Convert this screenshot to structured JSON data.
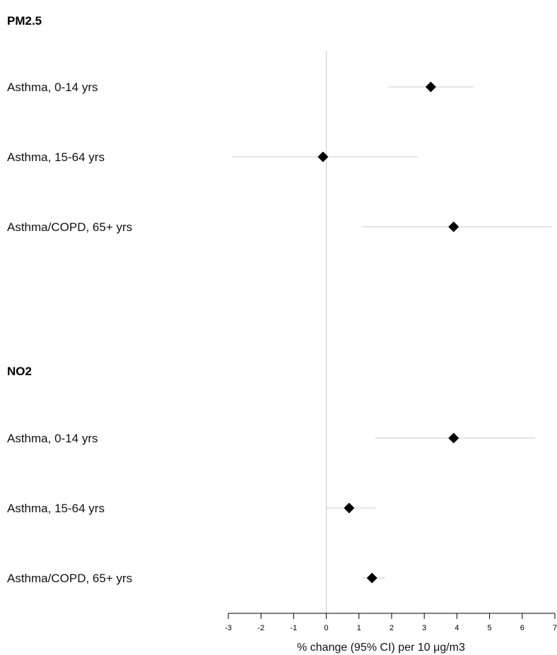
{
  "chart_data": {
    "type": "forest",
    "xlabel": "% change (95% CI) per 10 μg/m3",
    "xlim": [
      -3,
      7
    ],
    "xticks": [
      "-3",
      "-2",
      "-1",
      "0",
      "1",
      "2",
      "3",
      "4",
      "5",
      "6",
      "7"
    ],
    "reference_line": 0,
    "groups": [
      {
        "name": "PM2.5",
        "rows": [
          {
            "label": "Asthma, 0-14 yrs",
            "estimate": 3.2,
            "ci_low": 1.9,
            "ci_high": 4.5
          },
          {
            "label": "Asthma, 15-64 yrs",
            "estimate": -0.1,
            "ci_low": -2.9,
            "ci_high": 2.8
          },
          {
            "label": "Asthma/COPD, 65+ yrs",
            "estimate": 3.9,
            "ci_low": 1.1,
            "ci_high": 6.9
          }
        ]
      },
      {
        "name": "NO2",
        "rows": [
          {
            "label": "Asthma, 0-14 yrs",
            "estimate": 3.9,
            "ci_low": 1.5,
            "ci_high": 6.4
          },
          {
            "label": "Asthma, 15-64 yrs",
            "estimate": 0.7,
            "ci_low": 0.0,
            "ci_high": 1.5
          },
          {
            "label": "Asthma/COPD, 65+ yrs",
            "estimate": 1.4,
            "ci_low": 1.1,
            "ci_high": 1.8
          }
        ]
      }
    ],
    "colors": {
      "marker": "#000000",
      "ci_line": "#c8c8c8",
      "reference": "#c8c8c8",
      "axis": "#000000"
    }
  }
}
